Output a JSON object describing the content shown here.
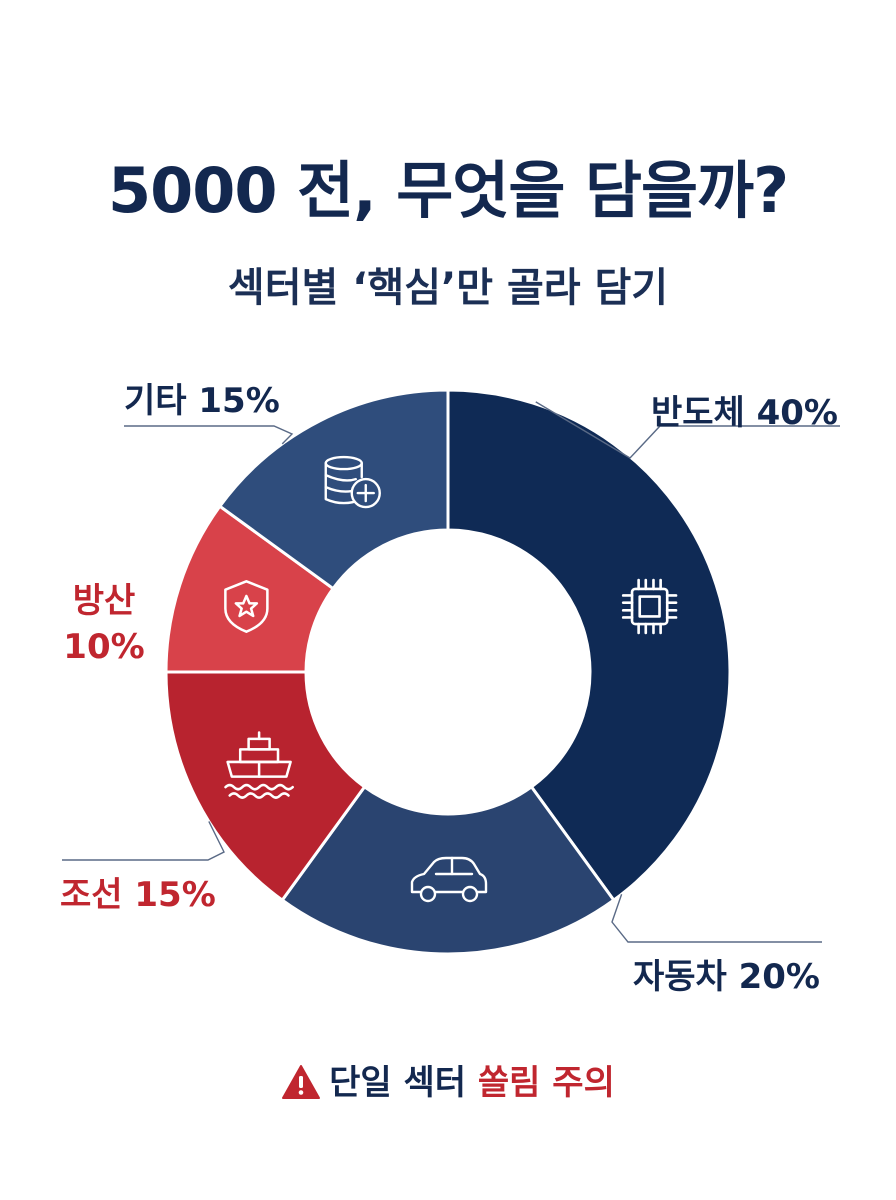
{
  "title": "5000 전, 무엇을 담을까?",
  "subtitle": "섹터별 ‘핵심’만 골라 담기",
  "warning": {
    "text_normal": "단일 섹터 ",
    "text_accent": "쏠림 주의",
    "icon": "warning-triangle-icon"
  },
  "colors": {
    "navy_dark": "#0f2a55",
    "navy": "#2a4470",
    "navy_light": "#2f4d7c",
    "red_light": "#d8424a",
    "red": "#b8232f",
    "title": "#13284f",
    "accent_red": "#c0262f"
  },
  "chart_data": {
    "type": "pie",
    "donut": true,
    "categories": [
      "반도체",
      "자동차",
      "조선",
      "방산",
      "기타"
    ],
    "values": [
      40,
      20,
      15,
      10,
      15
    ],
    "labels": [
      "반도체 40%",
      "자동차 20%",
      "조선 15%",
      "방산 10%",
      "기타 15%"
    ],
    "colors": [
      "#0f2a55",
      "#2a4470",
      "#b8232f",
      "#d8424a",
      "#2f4d7c"
    ],
    "icons": [
      "chip-icon",
      "car-icon",
      "ship-icon",
      "shield-star-icon",
      "coins-plus-icon"
    ],
    "label_colors": [
      "#13284f",
      "#13284f",
      "#c0262f",
      "#c0262f",
      "#13284f"
    ],
    "legend": "none"
  }
}
